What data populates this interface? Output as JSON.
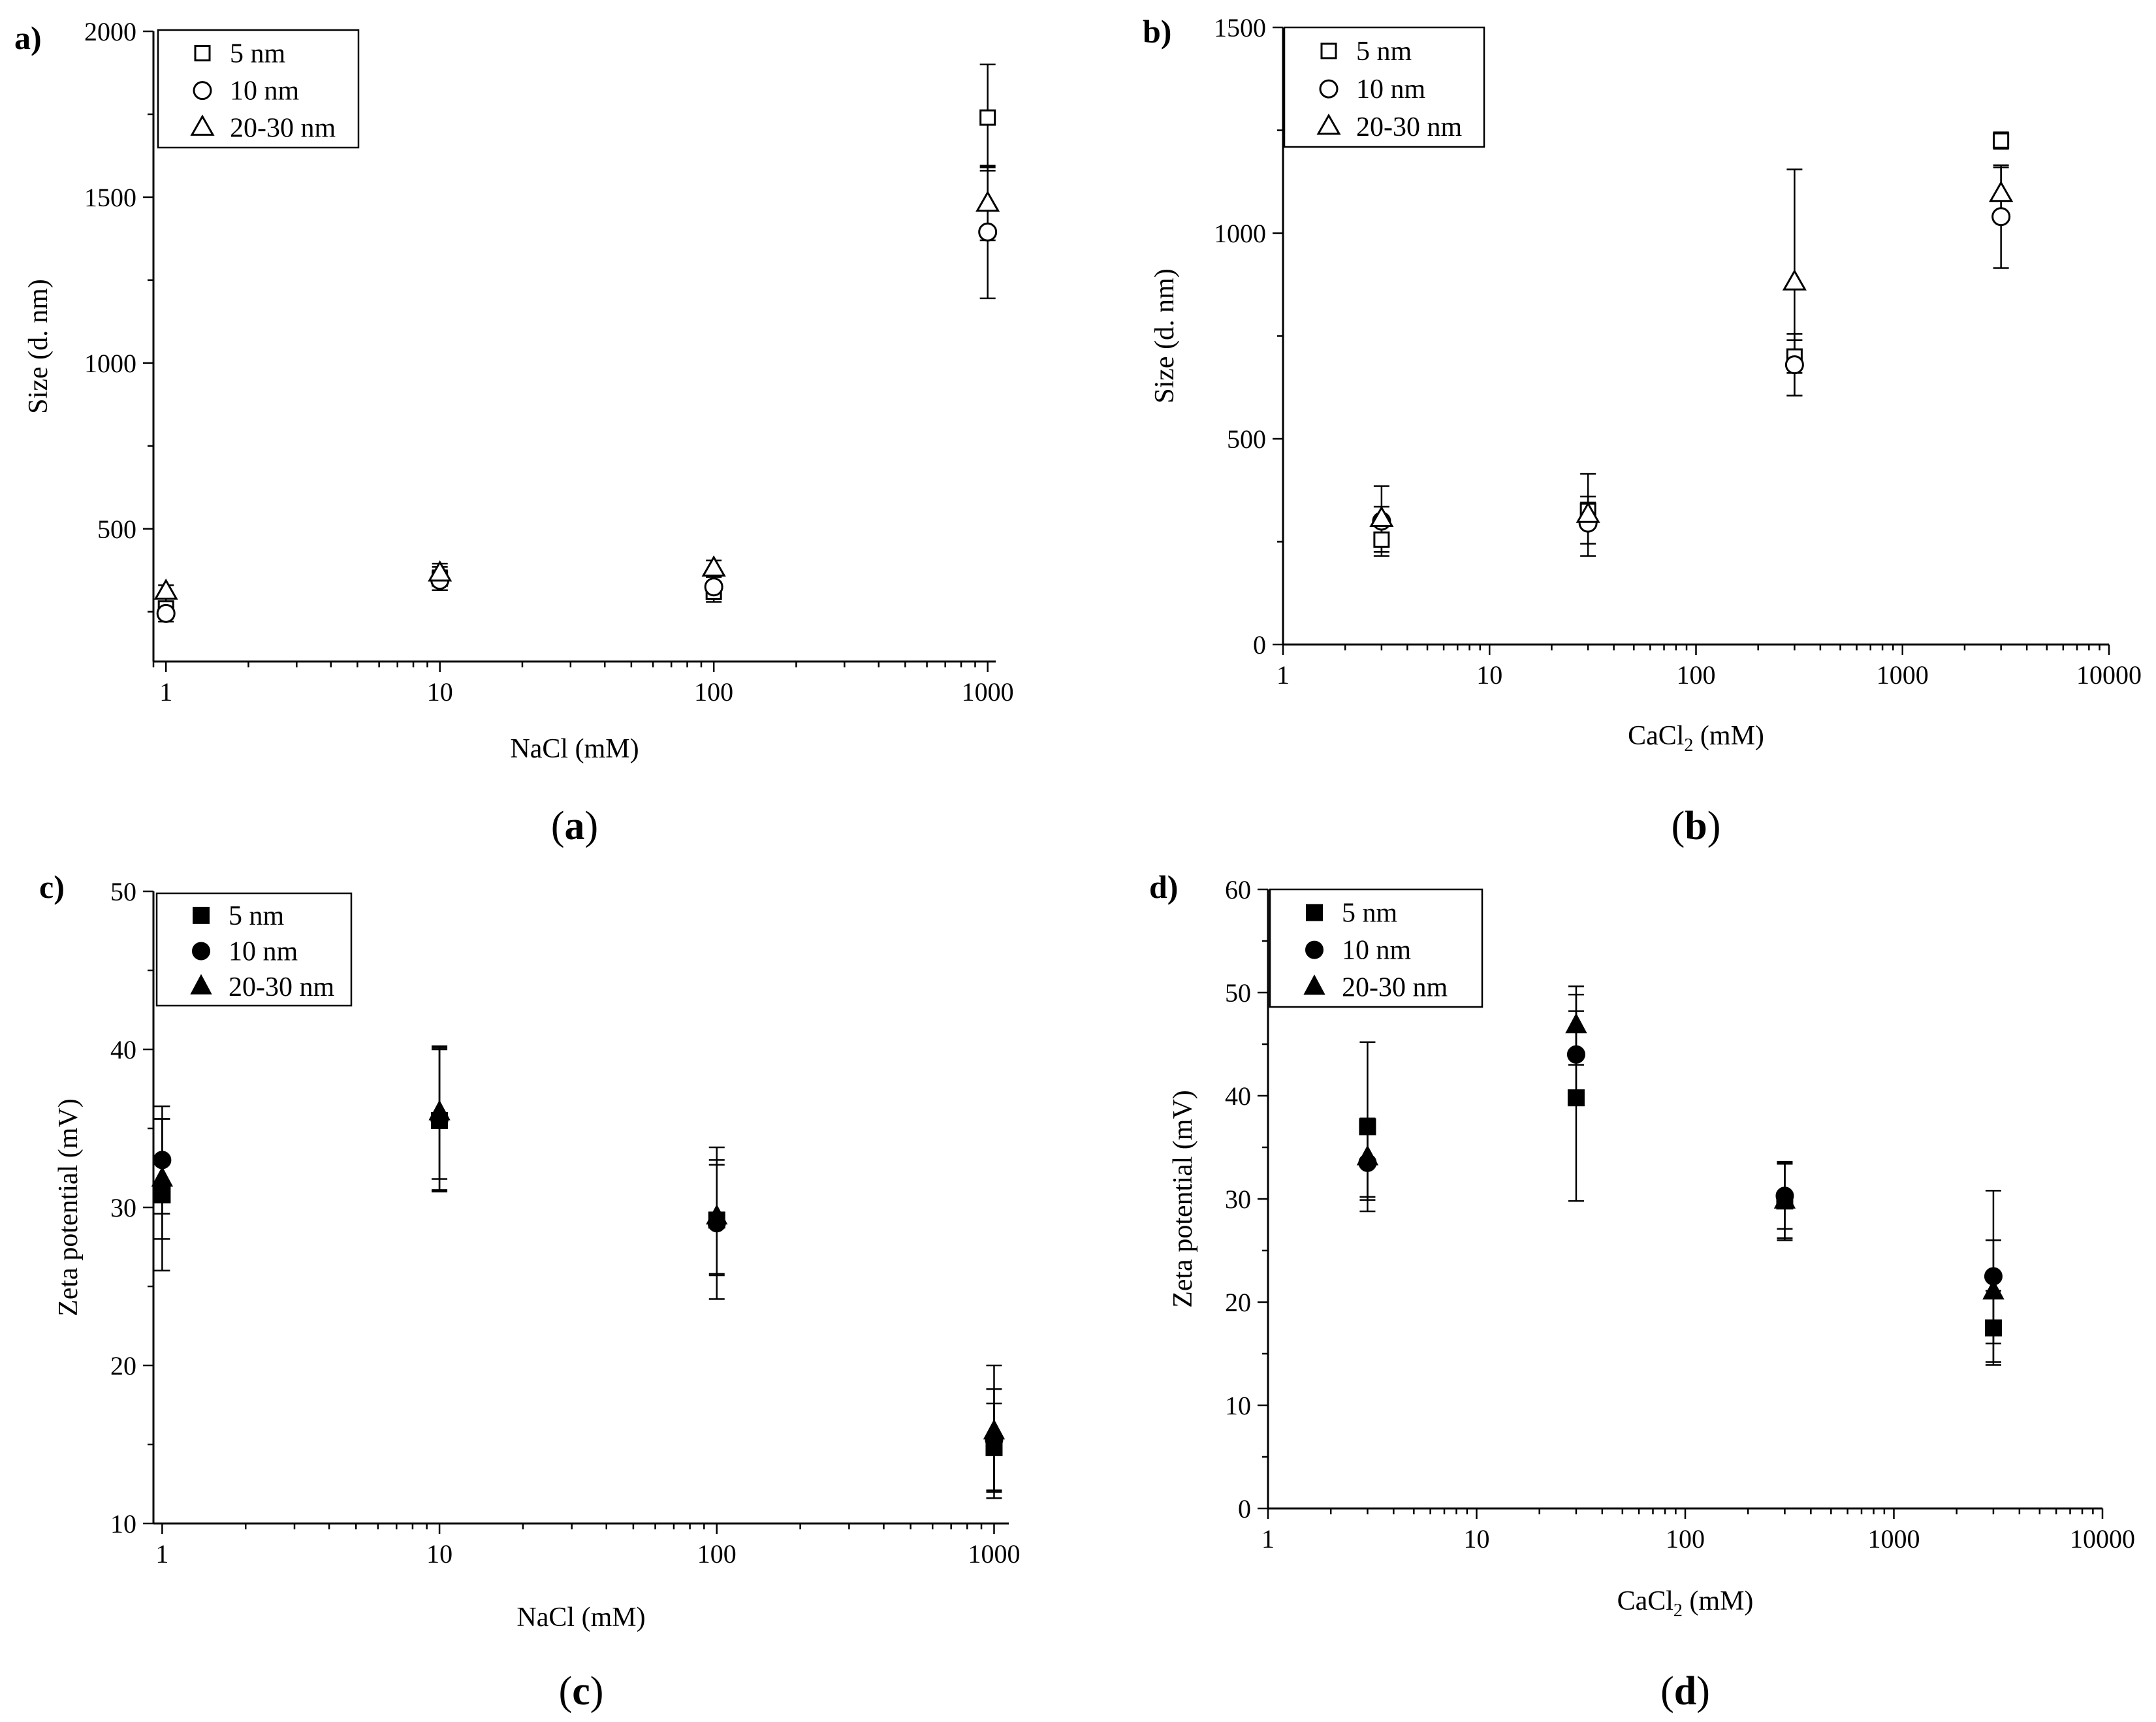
{
  "figure": {
    "captions": [
      "(a)",
      "(b)",
      "(c)",
      "(d)"
    ],
    "caption_parts": [
      {
        "open": "(",
        "letter": "a",
        "close": ")"
      },
      {
        "open": "(",
        "letter": "b",
        "close": ")"
      },
      {
        "open": "(",
        "letter": "c",
        "close": ")"
      },
      {
        "open": "(",
        "letter": "d",
        "close": ")"
      }
    ]
  },
  "colors": {
    "ink": "#000000",
    "background": "#ffffff"
  },
  "chart_data": [
    {
      "panel_label": "a)",
      "type": "scatter",
      "marker_style": "open",
      "title": "",
      "xlabel": "NaCl (mM)",
      "xlabel_parts": {
        "main": "NaCl (mM)"
      },
      "ylabel": "Size (d. nm)",
      "xscale": "log",
      "xlim": [
        0.9,
        1070
      ],
      "ylim": [
        100,
        2000
      ],
      "xticks": [
        1,
        10,
        100,
        1000
      ],
      "xtick_labels": [
        "1",
        "10",
        "100",
        "1000"
      ],
      "yticks": [
        500,
        1000,
        1500,
        2000
      ],
      "ytick_labels": [
        "500",
        "1000",
        "1500",
        "2000"
      ],
      "legend_position": "top-left",
      "series": [
        {
          "name": "5 nm",
          "marker": "square",
          "x": [
            1,
            10,
            100,
            1000
          ],
          "y": [
            260,
            350,
            310,
            1740
          ],
          "err": [
            30,
            35,
            30,
            160
          ]
        },
        {
          "name": "10 nm",
          "marker": "circle",
          "x": [
            1,
            10,
            100,
            1000
          ],
          "y": [
            245,
            345,
            325,
            1395
          ],
          "err": [
            25,
            30,
            30,
            200
          ]
        },
        {
          "name": "20-30 nm",
          "marker": "triangle",
          "x": [
            1,
            10,
            100,
            1000
          ],
          "y": [
            310,
            365,
            380,
            1480
          ],
          "err": [
            20,
            30,
            25,
            110
          ]
        }
      ]
    },
    {
      "panel_label": "b)",
      "type": "scatter",
      "marker_style": "open",
      "title": "",
      "xlabel": "CaCl2 (mM)",
      "xlabel_parts": {
        "main": "CaCl",
        "sub": "2",
        "tail": " (mM)"
      },
      "ylabel": "Size (d. nm)",
      "xscale": "log",
      "xlim": [
        1,
        10000
      ],
      "ylim": [
        0,
        1500
      ],
      "xticks": [
        1,
        10,
        100,
        1000,
        10000
      ],
      "xtick_labels": [
        "1",
        "10",
        "100",
        "1000",
        "10000"
      ],
      "yticks": [
        0,
        500,
        1000,
        1500
      ],
      "ytick_labels": [
        "0",
        "500",
        "1000",
        "1500"
      ],
      "legend_position": "top-left",
      "series": [
        {
          "name": "5 nm",
          "marker": "square",
          "x": [
            3,
            30,
            300,
            3000
          ],
          "y": [
            255,
            325,
            700,
            1225
          ],
          "err": [
            40,
            35,
            40,
            20
          ]
        },
        {
          "name": "10 nm",
          "marker": "circle",
          "x": [
            3,
            30,
            300,
            3000
          ],
          "y": [
            300,
            295,
            680,
            1040
          ],
          "err": [
            35,
            50,
            75,
            125
          ]
        },
        {
          "name": "20-30 nm",
          "marker": "triangle",
          "x": [
            3,
            30,
            300,
            3000
          ],
          "y": [
            305,
            315,
            880,
            1095
          ],
          "err": [
            80,
            100,
            275,
            65
          ]
        }
      ]
    },
    {
      "panel_label": "c)",
      "type": "scatter",
      "marker_style": "filled",
      "title": "",
      "xlabel": "NaCl (mM)",
      "xlabel_parts": {
        "main": "NaCl (mM)"
      },
      "ylabel": "Zeta potential (mV)",
      "xscale": "log",
      "xlim": [
        0.93,
        1130
      ],
      "ylim": [
        10,
        50
      ],
      "xticks": [
        1,
        10,
        100,
        1000
      ],
      "xtick_labels": [
        "1",
        "10",
        "100",
        "1000"
      ],
      "yticks": [
        10,
        20,
        30,
        40,
        50
      ],
      "ytick_labels": [
        "10",
        "20",
        "30",
        "40",
        "50"
      ],
      "legend_position": "top-left",
      "series": [
        {
          "name": "5 nm",
          "marker": "square",
          "x": [
            1,
            10,
            100,
            1000
          ],
          "y": [
            30.8,
            35.5,
            29.2,
            14.8
          ],
          "err": [
            4.8,
            4.5,
            3.5,
            2.8
          ]
        },
        {
          "name": "10 nm",
          "marker": "circle",
          "x": [
            1,
            10,
            100,
            1000
          ],
          "y": [
            33.0,
            35.6,
            29.0,
            15.3
          ],
          "err": [
            3.4,
            4.5,
            4.8,
            3.2
          ]
        },
        {
          "name": "20-30 nm",
          "marker": "triangle",
          "x": [
            1,
            10,
            100,
            1000
          ],
          "y": [
            31.8,
            36.0,
            29.4,
            15.8
          ],
          "err": [
            3.8,
            4.2,
            3.6,
            4.2
          ]
        }
      ]
    },
    {
      "panel_label": "d)",
      "type": "scatter",
      "marker_style": "filled",
      "title": "",
      "xlabel": "CaCl2 (mM)",
      "xlabel_parts": {
        "main": "CaCl",
        "sub": "2",
        "tail": " (mM)"
      },
      "ylabel": "Zeta potential (mV)",
      "xscale": "log",
      "xlim": [
        1,
        10000
      ],
      "ylim": [
        0,
        60
      ],
      "xticks": [
        1,
        10,
        100,
        1000,
        10000
      ],
      "xtick_labels": [
        "1",
        "10",
        "100",
        "1000",
        "10000"
      ],
      "yticks": [
        0,
        10,
        20,
        30,
        40,
        50,
        60
      ],
      "ytick_labels": [
        "0",
        "10",
        "20",
        "30",
        "40",
        "50",
        "60"
      ],
      "legend_position": "top-left",
      "series": [
        {
          "name": "5 nm",
          "marker": "square",
          "x": [
            3,
            30,
            300,
            3000
          ],
          "y": [
            37.0,
            39.8,
            29.8,
            17.5
          ],
          "err": [
            8.2,
            10.0,
            3.6,
            3.6
          ]
        },
        {
          "name": "10 nm",
          "marker": "circle",
          "x": [
            3,
            30,
            300,
            3000
          ],
          "y": [
            33.5,
            44.0,
            30.3,
            22.5
          ],
          "err": [
            3.6,
            4.2,
            3.2,
            8.3
          ]
        },
        {
          "name": "20-30 nm",
          "marker": "triangle",
          "x": [
            3,
            30,
            300,
            3000
          ],
          "y": [
            34.0,
            46.8,
            29.8,
            21.0
          ],
          "err": [
            3.8,
            3.8,
            3.8,
            5.0
          ]
        }
      ]
    }
  ]
}
